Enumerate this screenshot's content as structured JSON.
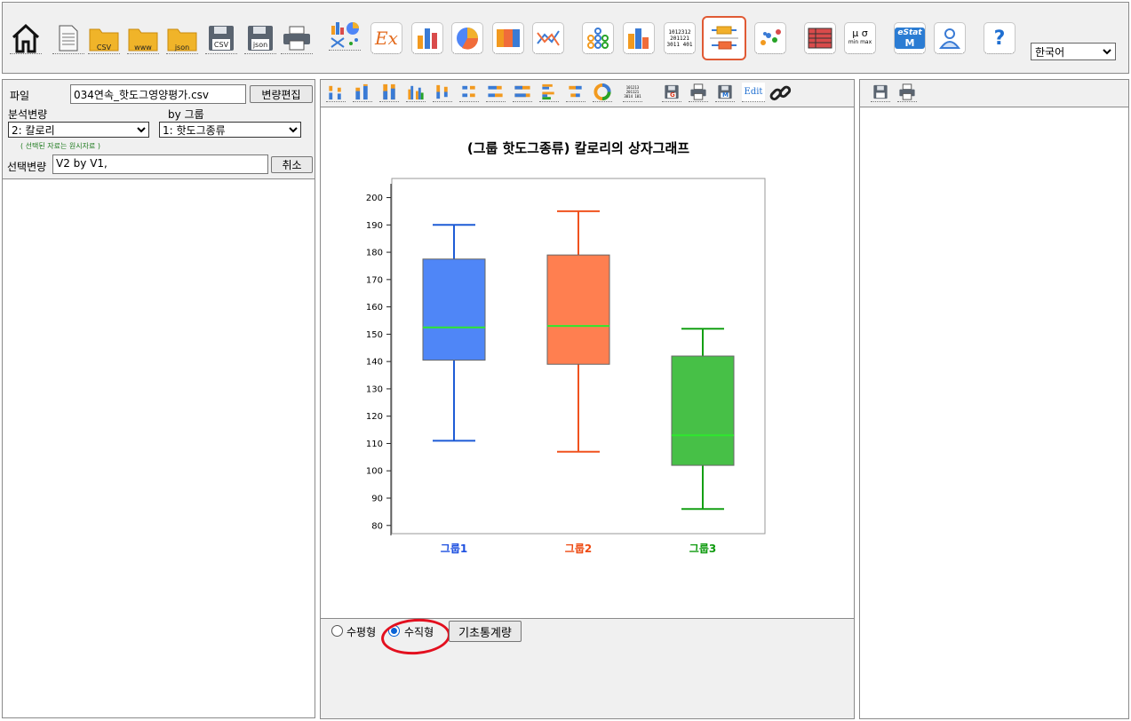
{
  "toolbar": {
    "icons": [
      {
        "name": "home-icon"
      },
      {
        "name": "new-sheet-icon"
      },
      {
        "name": "open-csv-icon",
        "label": "CSV"
      },
      {
        "name": "open-web-icon",
        "label": "www"
      },
      {
        "name": "open-json-icon",
        "label": "json"
      },
      {
        "name": "save-csv-icon",
        "label": "CSV"
      },
      {
        "name": "save-json-icon",
        "label": "json"
      },
      {
        "name": "print-icon"
      },
      {
        "name": "examples-icon",
        "label": "Ex"
      }
    ],
    "language": "한국어",
    "icon_labels": {
      "stat": "μ σ",
      "stat_sub": "min max",
      "estat": "eStat",
      "estat_sub": "M",
      "help": "?",
      "stem": "1012312 201121 3011 401"
    }
  },
  "left": {
    "file_label": "파일",
    "file_name": "034연속_핫도그영양평가.csv",
    "edit_var_button": "변량편집",
    "analysis_var_label": "분석변량",
    "by_group_label": "by 그룹",
    "analysis_var_value": "2: 칼로리",
    "group_var_value": "1: 핫도그종류",
    "note": "( 선택된 자료는 원시자료 )",
    "selected_label": "선택변량",
    "selected_value": "V2  by  V1,",
    "cancel_button": "취소"
  },
  "middle": {
    "icon_labels": {
      "edit": "Edit",
      "stem": "101213 201121 3014 101",
      "g": "G",
      "m": "M"
    },
    "options": {
      "horizontal_label": "수평형",
      "vertical_label": "수직형",
      "selected": "vertical",
      "stats_button": "기초통계량"
    }
  },
  "chart_data": {
    "type": "boxplot",
    "title": "(그룹 핫도그종류) 칼로리의 상자그래프",
    "orientation": "vertical",
    "ylim": [
      77,
      207
    ],
    "yticks": [
      80,
      90,
      100,
      110,
      120,
      130,
      140,
      150,
      160,
      170,
      180,
      190,
      200
    ],
    "groups": [
      {
        "label": "그룹1",
        "min": 111,
        "q1": 140.5,
        "median": 152.5,
        "q3": 177.5,
        "max": 190,
        "color": "#4f86f7",
        "stroke": "#1d5bd6",
        "label_color": "#1d4fe0"
      },
      {
        "label": "그룹2",
        "min": 107,
        "q1": 139,
        "median": 153,
        "q3": 179,
        "max": 195,
        "color": "#ff7f50",
        "stroke": "#f0521e",
        "label_color": "#ee4a12"
      },
      {
        "label": "그룹3",
        "min": 86,
        "q1": 102,
        "median": 113,
        "q3": 142,
        "max": 152,
        "color": "#47c047",
        "stroke": "#139f13",
        "label_color": "#0e9a0e"
      }
    ],
    "median_color": "#2ee82e",
    "grid": false,
    "legend": "none"
  },
  "right": {
    "icons": [
      {
        "name": "save-icon"
      },
      {
        "name": "print-icon"
      }
    ]
  }
}
